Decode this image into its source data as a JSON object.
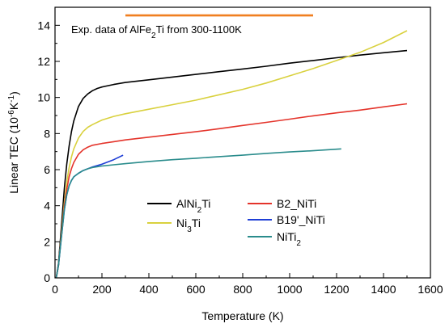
{
  "chart_data": {
    "type": "line",
    "xlabel": "Temperature (K)",
    "ylabel": "Linear TEC (10^-6 K^-1)",
    "xlim": [
      0,
      1600
    ],
    "ylim": [
      0,
      15
    ],
    "xticks": [
      0,
      200,
      400,
      600,
      800,
      1000,
      1200,
      1400,
      1600
    ],
    "yticks": [
      0,
      2,
      4,
      6,
      8,
      10,
      12,
      14
    ],
    "grid": false,
    "annotation": {
      "text": "Exp. data of AlFe2Ti from 300-1100K",
      "x_range": [
        300,
        1100
      ],
      "y": 14.55,
      "color": "#f07f20"
    },
    "series": [
      {
        "name": "AlNi2Ti",
        "color": "#000000",
        "x": [
          5,
          15,
          25,
          40,
          50,
          60,
          70,
          80,
          90,
          100,
          120,
          140,
          160,
          180,
          200,
          250,
          300,
          400,
          500,
          600,
          700,
          800,
          900,
          1000,
          1100,
          1200,
          1300,
          1400,
          1500
        ],
        "y": [
          0,
          0.8,
          2.5,
          5.0,
          6.3,
          7.3,
          8.1,
          8.7,
          9.1,
          9.5,
          9.95,
          10.2,
          10.38,
          10.5,
          10.58,
          10.72,
          10.83,
          10.98,
          11.13,
          11.28,
          11.43,
          11.58,
          11.73,
          11.9,
          12.05,
          12.2,
          12.35,
          12.48,
          12.6
        ]
      },
      {
        "name": "Ni3Ti",
        "color": "#d9d13e",
        "x": [
          5,
          15,
          25,
          40,
          50,
          60,
          70,
          80,
          100,
          120,
          140,
          160,
          200,
          250,
          300,
          400,
          500,
          600,
          700,
          800,
          900,
          1000,
          1100,
          1200,
          1300,
          1400,
          1500
        ],
        "y": [
          0,
          0.7,
          2.2,
          4.2,
          5.3,
          6.1,
          6.7,
          7.15,
          7.75,
          8.12,
          8.35,
          8.5,
          8.75,
          8.95,
          9.1,
          9.35,
          9.6,
          9.85,
          10.15,
          10.45,
          10.8,
          11.2,
          11.6,
          12.05,
          12.5,
          13.05,
          13.7
        ]
      },
      {
        "name": "B2_NiTi",
        "color": "#e4342b",
        "x": [
          5,
          15,
          25,
          40,
          50,
          60,
          70,
          80,
          100,
          120,
          140,
          160,
          200,
          250,
          300,
          400,
          500,
          600,
          700,
          800,
          900,
          1000,
          1100,
          1200,
          1300,
          1400,
          1500
        ],
        "y": [
          0,
          0.7,
          2.1,
          4.0,
          4.9,
          5.6,
          6.05,
          6.4,
          6.85,
          7.1,
          7.25,
          7.35,
          7.45,
          7.55,
          7.65,
          7.8,
          7.95,
          8.1,
          8.27,
          8.45,
          8.62,
          8.8,
          8.98,
          9.15,
          9.3,
          9.48,
          9.65
        ]
      },
      {
        "name": "B19'_NiTi",
        "color": "#1f3fd6",
        "x": [
          5,
          15,
          25,
          40,
          50,
          60,
          70,
          80,
          100,
          120,
          140,
          160,
          200,
          250,
          290
        ],
        "y": [
          0,
          0.7,
          2.0,
          3.8,
          4.6,
          5.1,
          5.4,
          5.6,
          5.8,
          5.95,
          6.05,
          6.15,
          6.3,
          6.55,
          6.8
        ]
      },
      {
        "name": "NiTi2",
        "color": "#2a8c8c",
        "x": [
          5,
          15,
          25,
          40,
          50,
          60,
          70,
          80,
          100,
          120,
          140,
          160,
          200,
          250,
          300,
          400,
          500,
          600,
          700,
          800,
          900,
          1000,
          1100,
          1220
        ],
        "y": [
          0,
          0.7,
          2.0,
          3.8,
          4.6,
          5.1,
          5.4,
          5.6,
          5.8,
          5.95,
          6.05,
          6.12,
          6.2,
          6.27,
          6.33,
          6.45,
          6.55,
          6.63,
          6.72,
          6.8,
          6.9,
          6.98,
          7.05,
          7.15
        ]
      }
    ],
    "legend": [
      {
        "series": 0,
        "label_main": "AlNi",
        "label_sub": "2",
        "label_tail": "Ti"
      },
      {
        "series": 1,
        "label_main": "Ni",
        "label_sub": "3",
        "label_tail": "Ti"
      },
      {
        "series": 2,
        "label_main": "B2_NiTi",
        "label_sub": "",
        "label_tail": ""
      },
      {
        "series": 3,
        "label_main": "B19'_NiTi",
        "label_sub": "",
        "label_tail": ""
      },
      {
        "series": 4,
        "label_main": "NiTi",
        "label_sub": "2",
        "label_tail": ""
      }
    ]
  }
}
